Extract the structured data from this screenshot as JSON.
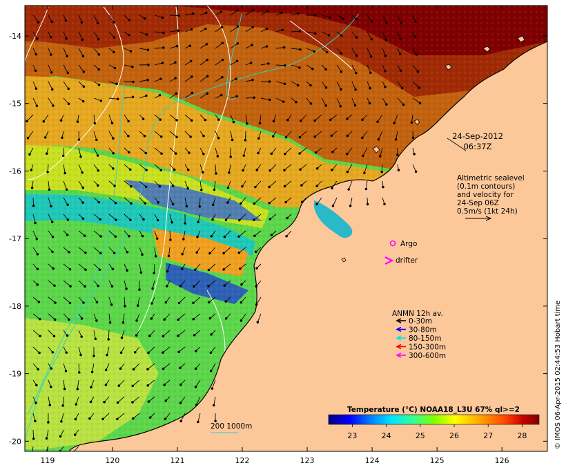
{
  "map": {
    "lon_ticks": [
      "119",
      "120",
      "121",
      "122",
      "123",
      "124",
      "125",
      "126"
    ],
    "lat_ticks": [
      "-14",
      "-15",
      "-16",
      "-17",
      "-18",
      "-19",
      "-20"
    ],
    "lon_range": [
      118.65,
      126.7
    ],
    "lat_range": [
      -20.15,
      -13.55
    ],
    "timestamp": {
      "date": "24-Sep-2012",
      "time": "06:37Z"
    },
    "altimetry_note": [
      "Altimetric sealevel",
      "(0.1m contours)",
      "and velocity for",
      "24-Sep 06Z",
      "0.5m/s (1kt 24h)"
    ],
    "argo_label": "Argo",
    "drifter_label": "drifter",
    "anmn": {
      "title": "ANMN 12h av.",
      "entries": [
        {
          "label": "0-30m",
          "color": "#000000"
        },
        {
          "label": "30-80m",
          "color": "#0000ff"
        },
        {
          "label": "80-150m",
          "color": "#00e5e5"
        },
        {
          "label": "150-300m",
          "color": "#ff0000"
        },
        {
          "label": "300-600m",
          "color": "#ff00ff"
        }
      ]
    },
    "isobath_label": "200  1000m",
    "colorbar": {
      "title": "Temperature (°C) NOAA18_L3U 67% ql>=2",
      "ticks": [
        "23",
        "24",
        "25",
        "26",
        "27",
        "28"
      ],
      "range": [
        22.3,
        28.5
      ],
      "stops": [
        "#00007f",
        "#0000ff",
        "#0080ff",
        "#00e5ff",
        "#32ff96",
        "#7fff00",
        "#ffff00",
        "#ffa500",
        "#ff4500",
        "#cc0000",
        "#7f0000"
      ]
    },
    "credit": "© IMOS 06-Apr-2015 02:44:53 Hobart time",
    "colors": {
      "land": "#fcc89a",
      "argo": "#ff00ff",
      "drifter": "#ff00ff",
      "contour": "#ffffff",
      "isobath": "#2fd0c8"
    }
  }
}
